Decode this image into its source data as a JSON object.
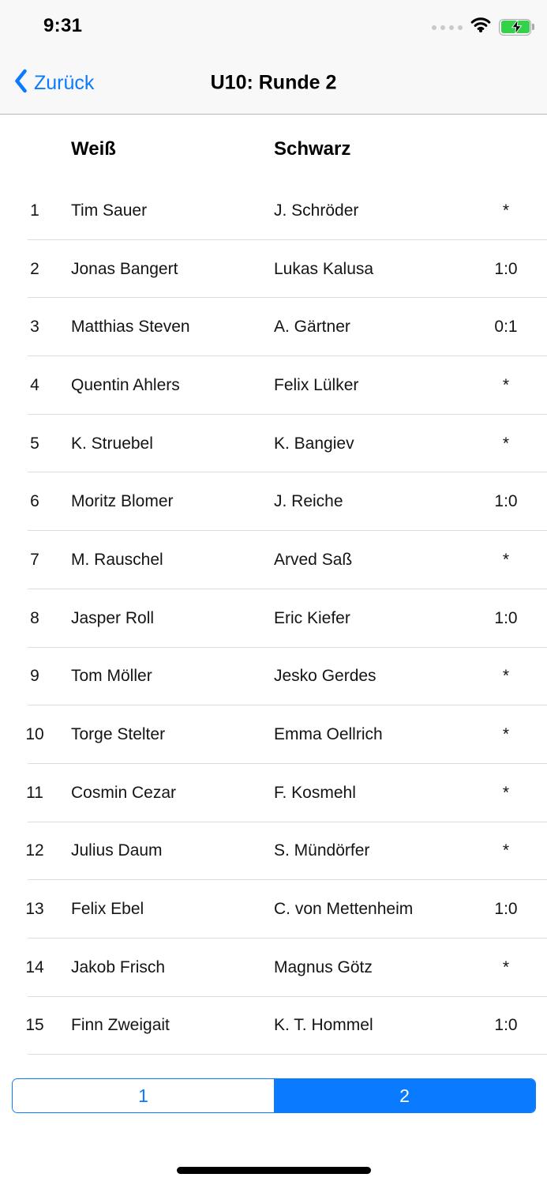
{
  "status_bar": {
    "time": "9:31",
    "icons": [
      "cellular-signal-icon",
      "wifi-icon",
      "battery-charging-icon"
    ]
  },
  "nav_bar": {
    "back_label": "Zurück",
    "title": "U10: Runde 2"
  },
  "table": {
    "columns": {
      "white": "Weiß",
      "black": "Schwarz"
    },
    "rows": [
      {
        "no": "1",
        "white": "Tim Sauer",
        "black": "J. Schröder",
        "result": "*"
      },
      {
        "no": "2",
        "white": "Jonas Bangert",
        "black": "Lukas Kalusa",
        "result": "1:0"
      },
      {
        "no": "3",
        "white": "Matthias Steven",
        "black": "A. Gärtner",
        "result": "0:1"
      },
      {
        "no": "4",
        "white": "Quentin Ahlers",
        "black": "Felix Lülker",
        "result": "*"
      },
      {
        "no": "5",
        "white": "K. Struebel",
        "black": "K. Bangiev",
        "result": "*"
      },
      {
        "no": "6",
        "white": "Moritz Blomer",
        "black": "J. Reiche",
        "result": "1:0"
      },
      {
        "no": "7",
        "white": "M. Rauschel",
        "black": "Arved Saß",
        "result": "*"
      },
      {
        "no": "8",
        "white": "Jasper Roll",
        "black": "Eric Kiefer",
        "result": "1:0"
      },
      {
        "no": "9",
        "white": "Tom Möller",
        "black": "Jesko Gerdes",
        "result": "*"
      },
      {
        "no": "10",
        "white": "Torge Stelter",
        "black": "Emma Oellrich",
        "result": "*"
      },
      {
        "no": "11",
        "white": "Cosmin Cezar",
        "black": "F. Kosmehl",
        "result": "*"
      },
      {
        "no": "12",
        "white": "Julius Daum",
        "black": "S. Mündörfer",
        "result": "*"
      },
      {
        "no": "13",
        "white": "Felix Ebel",
        "black": "C. von Mettenheim",
        "result": "1:0"
      },
      {
        "no": "14",
        "white": "Jakob Frisch",
        "black": "Magnus Götz",
        "result": "*"
      },
      {
        "no": "15",
        "white": "Finn Zweigait",
        "black": "K. T. Hommel",
        "result": "1:0"
      }
    ]
  },
  "pager": {
    "segments": [
      {
        "label": "1",
        "selected": false
      },
      {
        "label": "2",
        "selected": true
      }
    ]
  },
  "colors": {
    "accent_blue": "#0a7aff",
    "battery_green": "#34d14b"
  }
}
